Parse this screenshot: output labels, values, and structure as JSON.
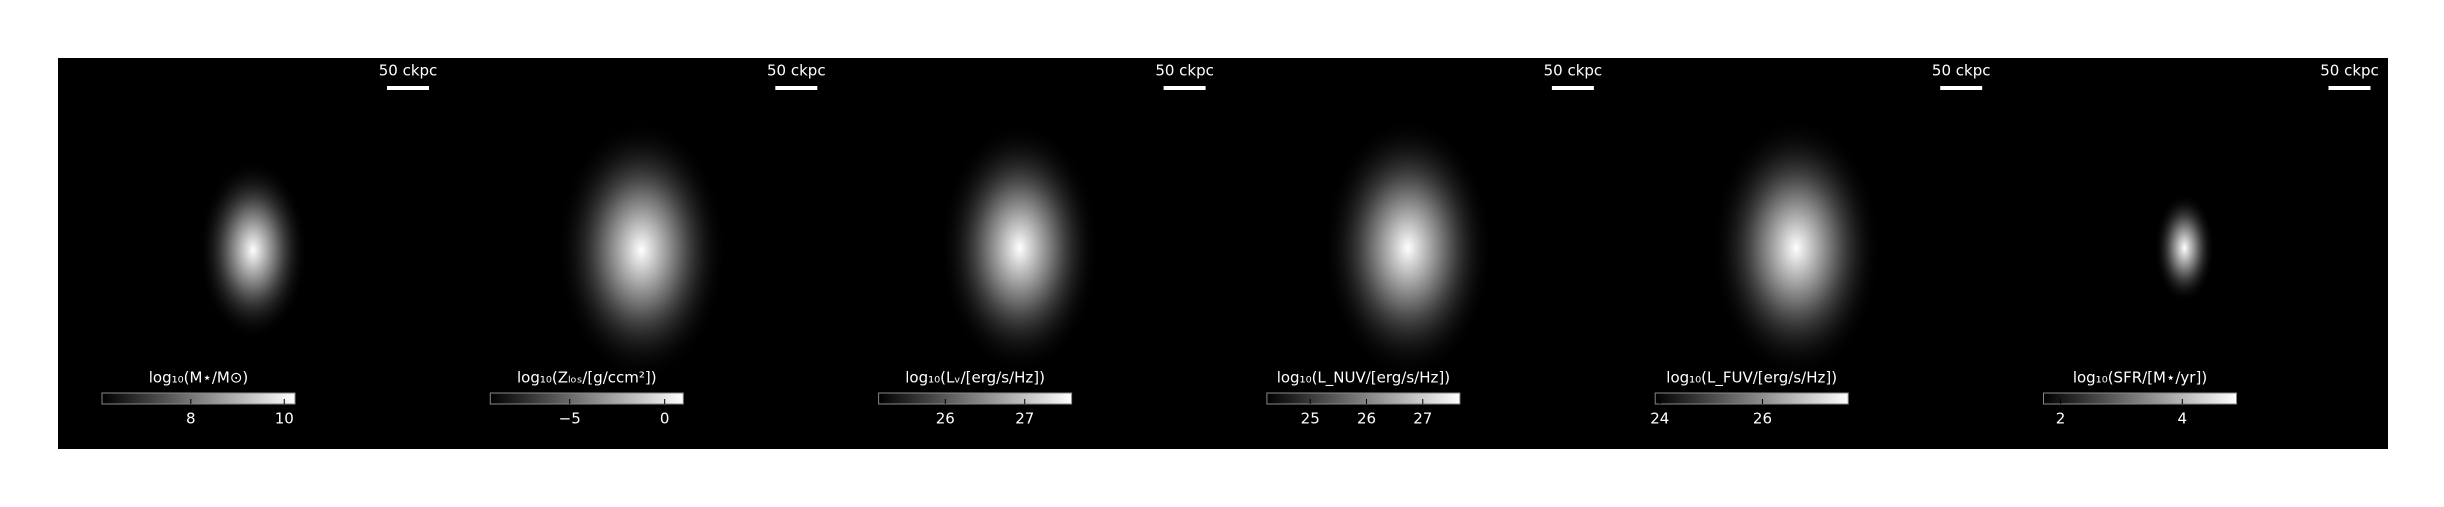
{
  "chart_data": [
    {
      "type": "image",
      "scalebar_label": "50 ckpc",
      "colorbar_label": "log₁₀(M⋆/M⊙)",
      "clim": [
        6.1,
        10.23
      ],
      "ticks": [
        8,
        10
      ]
    },
    {
      "type": "image",
      "scalebar_label": "50 ckpc",
      "colorbar_label": "log₁₀(Zₗₒₛ/[g/ccm²])",
      "clim": [
        -9.18,
        0.98
      ],
      "ticks": [
        {
          "value": -5,
          "label": "−5"
        },
        0
      ]
    },
    {
      "type": "image",
      "scalebar_label": "50 ckpc",
      "colorbar_label": "log₁₀(Lᵥ/[erg/s/Hz])",
      "clim": [
        25.16,
        27.59
      ],
      "ticks": [
        26,
        27
      ]
    },
    {
      "type": "image",
      "scalebar_label": "50 ckpc",
      "colorbar_label": "log₁₀(L_NUV/[erg/s/Hz])",
      "clim": [
        24.23,
        27.66
      ],
      "ticks": [
        25,
        26,
        27
      ]
    },
    {
      "type": "image",
      "scalebar_label": "50 ckpc",
      "colorbar_label": "log₁₀(L_FUV/[erg/s/Hz])",
      "clim": [
        23.91,
        27.67
      ],
      "ticks": [
        24,
        26
      ]
    },
    {
      "type": "image",
      "scalebar_label": "50 ckpc",
      "colorbar_label": "log₁₀(SFR/[M⋆/yr])",
      "clim": [
        1.72,
        4.89
      ],
      "ticks": [
        2,
        4
      ]
    }
  ]
}
